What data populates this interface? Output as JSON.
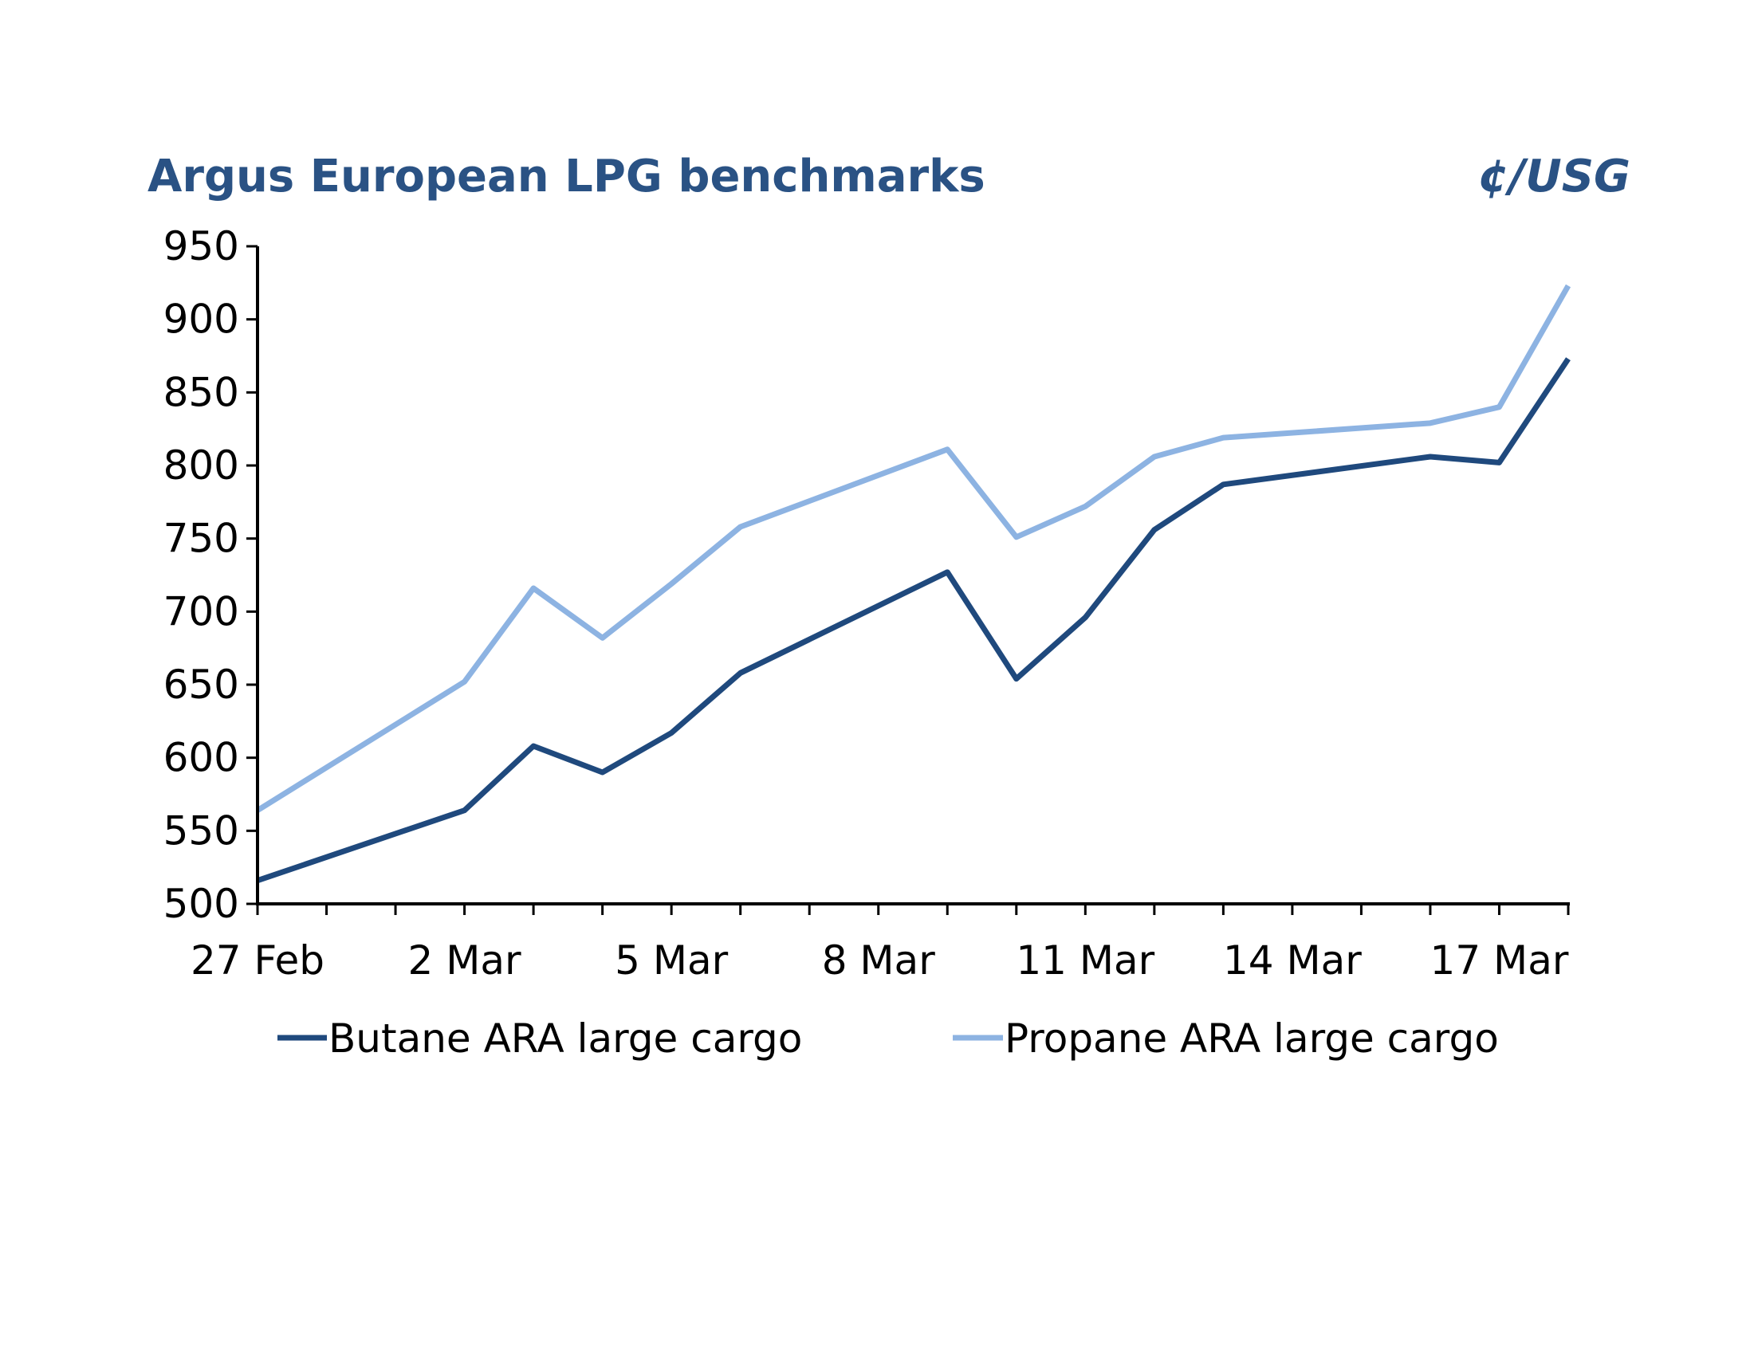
{
  "chart_data": {
    "type": "line",
    "title": "Argus European LPG benchmarks",
    "units": "¢/USG",
    "xlabel": "",
    "ylabel": "",
    "ylim": [
      500,
      950
    ],
    "yticks": [
      "500",
      "550",
      "600",
      "650",
      "700",
      "750",
      "800",
      "850",
      "900",
      "950"
    ],
    "xticks": [
      "27 Feb",
      "2 Mar",
      "5 Mar",
      "8 Mar",
      "11 Mar",
      "14 Mar",
      "17 Mar"
    ],
    "x": [
      "27 Feb",
      "2 Mar",
      "3 Mar",
      "4 Mar",
      "5 Mar",
      "6 Mar",
      "9 Mar",
      "10 Mar",
      "11 Mar",
      "12 Mar",
      "13 Mar",
      "16 Mar",
      "17 Mar",
      "18 Mar"
    ],
    "grid": false,
    "legend": "bottom",
    "series": [
      {
        "name": "Butane ARA large cargo",
        "color": "#1f497d",
        "values": [
          516,
          564,
          608,
          590,
          617,
          658,
          727,
          654,
          696,
          756,
          787,
          806,
          802,
          873
        ]
      },
      {
        "name": "Propane ARA large cargo",
        "color": "#8db3e2",
        "values": [
          564,
          652,
          716,
          682,
          719,
          758,
          811,
          751,
          772,
          806,
          819,
          829,
          840,
          923
        ]
      }
    ]
  }
}
